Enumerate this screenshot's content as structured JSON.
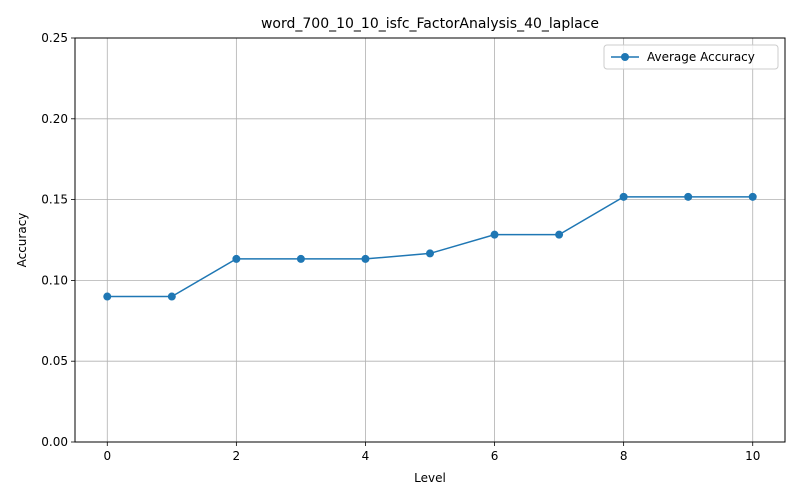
{
  "chart_data": {
    "type": "line",
    "title": "word_700_10_10_isfc_FactorAnalysis_40_laplace",
    "xlabel": "Level",
    "ylabel": "Accuracy",
    "xlim": [
      -0.5,
      10.5
    ],
    "ylim": [
      0.0,
      0.25
    ],
    "xticks": [
      0,
      2,
      4,
      6,
      8,
      10
    ],
    "xtick_labels": [
      "0",
      "2",
      "4",
      "6",
      "8",
      "10"
    ],
    "yticks": [
      0.0,
      0.05,
      0.1,
      0.15,
      0.2,
      0.25
    ],
    "ytick_labels": [
      "0.00",
      "0.05",
      "0.10",
      "0.15",
      "0.20",
      "0.25"
    ],
    "grid": true,
    "legend_position": "top-right",
    "series": [
      {
        "name": "Average Accuracy",
        "color": "#1f77b4",
        "marker": "circle",
        "x": [
          0,
          1,
          2,
          3,
          4,
          5,
          6,
          7,
          8,
          9,
          10
        ],
        "y": [
          0.09,
          0.09,
          0.1133,
          0.1133,
          0.1133,
          0.1167,
          0.1283,
          0.1283,
          0.1517,
          0.1517,
          0.1517
        ]
      }
    ]
  }
}
